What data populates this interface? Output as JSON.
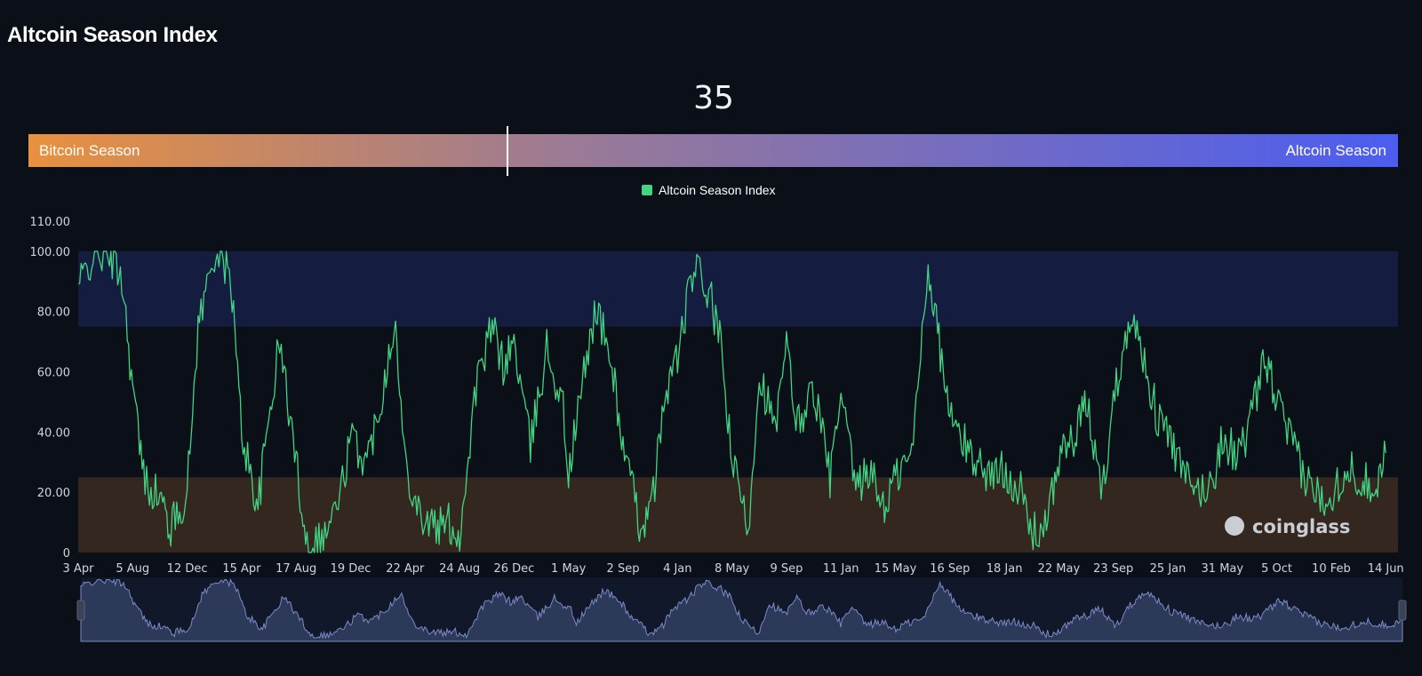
{
  "header": {
    "title": "Altcoin Season Index"
  },
  "gauge": {
    "value": "35",
    "value_num": 35,
    "left_label": "Bitcoin Season",
    "right_label": "Altcoin Season",
    "left_color": "#e8913e",
    "mid_color": "#9a7a96",
    "right_color": "#4b5df0"
  },
  "legend": {
    "label": "Altcoin Season Index",
    "color": "#43d483"
  },
  "watermark": {
    "text": "coinglass"
  },
  "colors": {
    "line": "#43d483",
    "altcoin_zone": "#141d3f",
    "bitcoin_zone": "#34271f",
    "navigator_fill": "#2c3958",
    "navigator_line": "#7c8ac9"
  },
  "chart_data": {
    "type": "line",
    "title": "",
    "xlabel": "",
    "ylabel": "",
    "ylim": [
      0,
      110
    ],
    "yticks": [
      0,
      20,
      40,
      60,
      80,
      100,
      110
    ],
    "ytick_labels": [
      "0",
      "20.00",
      "40.00",
      "60.00",
      "80.00",
      "100.00",
      "110.00"
    ],
    "xtick_labels": [
      "3 Apr",
      "5 Aug",
      "12 Dec",
      "15 Apr",
      "17 Aug",
      "19 Dec",
      "22 Apr",
      "24 Aug",
      "26 Dec",
      "1 May",
      "2 Sep",
      "4 Jan",
      "8 May",
      "9 Sep",
      "11 Jan",
      "15 May",
      "16 Sep",
      "18 Jan",
      "22 May",
      "23 Sep",
      "25 Jan",
      "31 May",
      "5 Oct",
      "10 Feb",
      "14 Jun"
    ],
    "bands": [
      {
        "from": 75,
        "to": 100,
        "label": "Altcoin Season",
        "color": "#141d3f"
      },
      {
        "from": 0,
        "to": 25,
        "label": "Bitcoin Season",
        "color": "#34271f"
      }
    ],
    "grid": false,
    "legend_position": "top-center",
    "series": [
      {
        "name": "Altcoin Season Index",
        "color": "#43d483",
        "x_tick_index": [
          0,
          0.3,
          0.6,
          0.8,
          1.0,
          1.2,
          1.5,
          1.7,
          2.0,
          2.2,
          2.5,
          2.8,
          3.0,
          3.3,
          3.5,
          3.7,
          4.0,
          4.2,
          4.5,
          4.8,
          5.0,
          5.3,
          5.6,
          5.8,
          6.0,
          6.3,
          6.6,
          6.8,
          7.0,
          7.3,
          7.6,
          7.8,
          8.0,
          8.3,
          8.6,
          8.9,
          9.0,
          9.2,
          9.5,
          9.8,
          10.0,
          10.3,
          10.5,
          10.8,
          11.0,
          11.3,
          11.6,
          11.8,
          12.0,
          12.3,
          12.5,
          12.8,
          13.0,
          13.2,
          13.5,
          13.8,
          14.0,
          14.3,
          14.5,
          14.8,
          15.0,
          15.3,
          15.6,
          15.8,
          16.0,
          16.3,
          16.5,
          16.8,
          17.0,
          17.3,
          17.5,
          17.8,
          18.0,
          18.3,
          18.5,
          18.8,
          19.0,
          19.3,
          19.6,
          19.8,
          20.0,
          20.3,
          20.5,
          20.8,
          21.0,
          21.3,
          21.5,
          21.8,
          22.0,
          22.3,
          22.5,
          22.8,
          23.0,
          23.3,
          23.5,
          23.8,
          24.0
        ],
        "y": [
          88,
          100,
          98,
          92,
          55,
          25,
          18,
          8,
          20,
          75,
          100,
          92,
          40,
          15,
          45,
          70,
          30,
          3,
          5,
          18,
          38,
          30,
          55,
          78,
          30,
          12,
          8,
          10,
          5,
          55,
          75,
          62,
          70,
          35,
          68,
          48,
          25,
          50,
          82,
          62,
          35,
          10,
          12,
          55,
          65,
          95,
          85,
          68,
          30,
          8,
          60,
          40,
          68,
          42,
          55,
          25,
          50,
          20,
          28,
          15,
          25,
          32,
          96,
          70,
          45,
          35,
          30,
          25,
          28,
          20,
          6,
          10,
          32,
          38,
          50,
          20,
          50,
          80,
          62,
          45,
          40,
          25,
          20,
          22,
          38,
          32,
          42,
          65,
          50,
          35,
          25,
          18,
          20,
          28,
          25,
          22,
          33
        ]
      }
    ]
  }
}
